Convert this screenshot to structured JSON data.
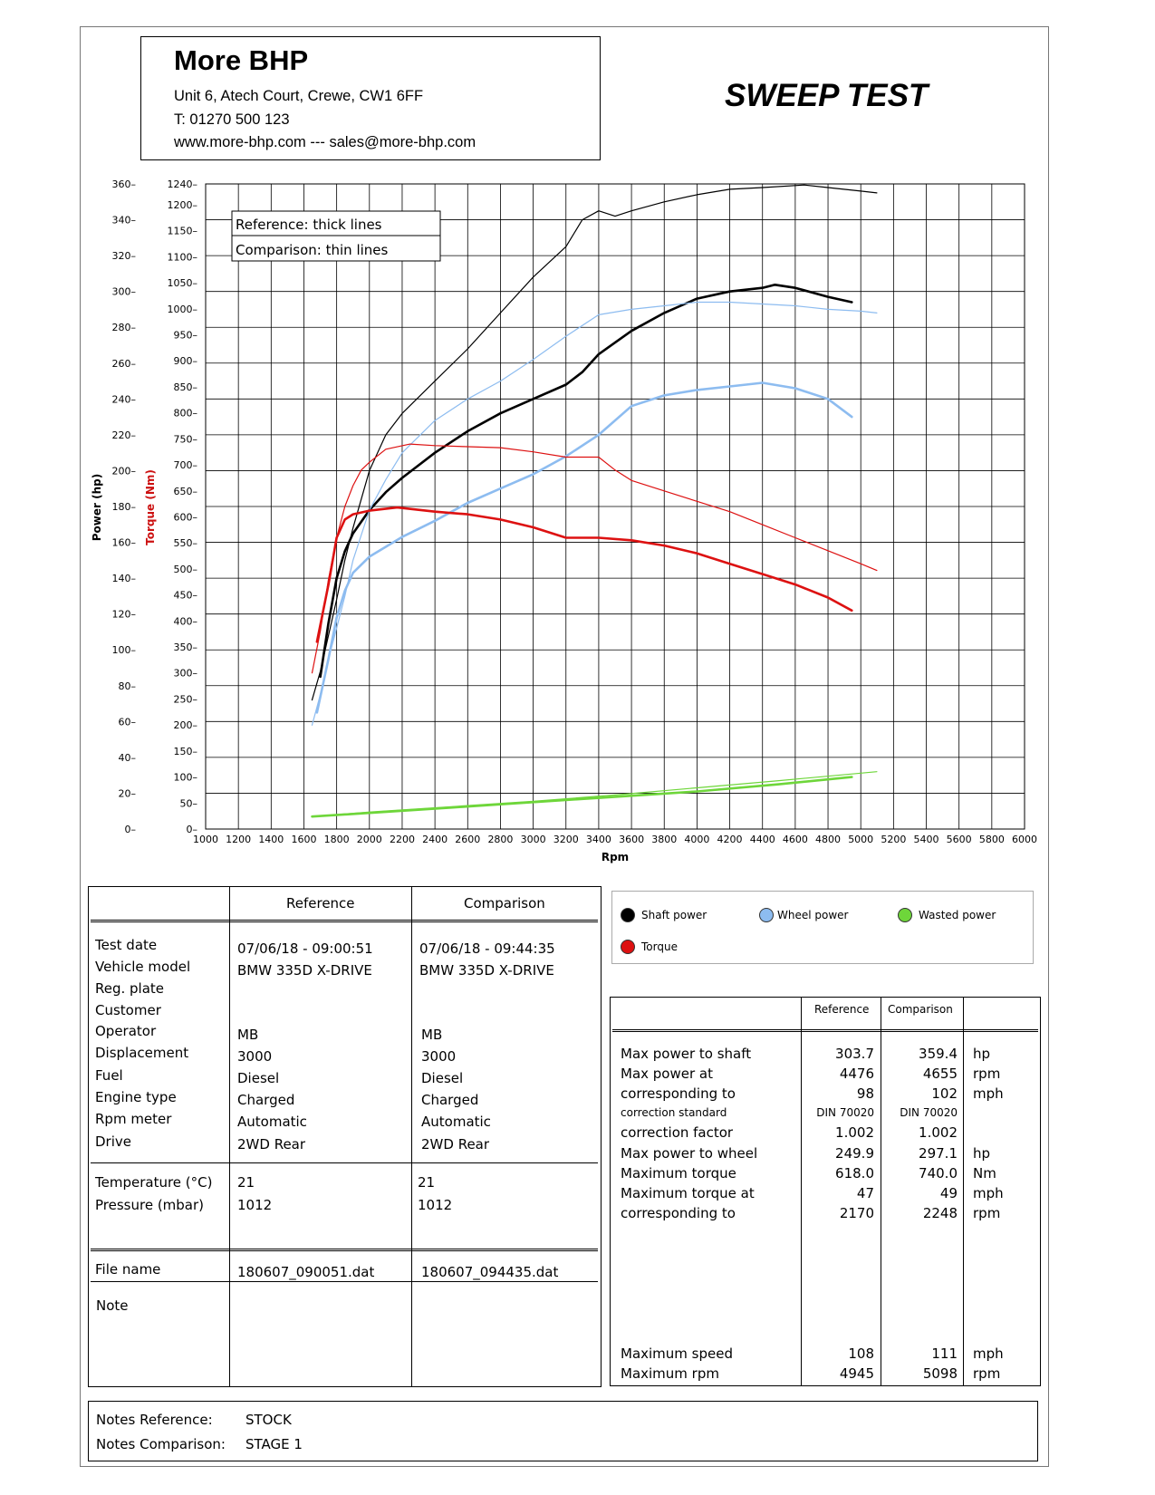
{
  "header": {
    "company": "More BHP",
    "address": "Unit 6, Atech Court, Crewe, CW1 6FF",
    "phone": "T: 01270 500 123",
    "web": "www.more-bhp.com --- sales@more-bhp.com",
    "test_title": "SWEEP TEST"
  },
  "chart_data": {
    "type": "line",
    "xlabel": "Rpm",
    "ylabel_left": "Power (hp)",
    "ylabel_right": "Torque (Nm)",
    "x_ticks": [
      1000,
      1200,
      1400,
      1600,
      1800,
      2000,
      2200,
      2400,
      2600,
      2800,
      3000,
      3200,
      3400,
      3600,
      3800,
      4000,
      4200,
      4400,
      4600,
      4800,
      5000,
      5200,
      5400,
      5600,
      5800,
      6000
    ],
    "power_ticks": [
      0,
      20,
      40,
      60,
      80,
      100,
      120,
      140,
      160,
      180,
      200,
      220,
      240,
      260,
      280,
      300,
      320,
      340,
      360
    ],
    "torque_ticks": [
      0,
      50,
      100,
      150,
      200,
      250,
      300,
      350,
      400,
      450,
      500,
      550,
      600,
      650,
      700,
      750,
      800,
      850,
      900,
      950,
      1000,
      1050,
      1100,
      1150,
      1200,
      1240
    ],
    "xlim": [
      1000,
      6000
    ],
    "power_lim": [
      0,
      360
    ],
    "torque_lim": [
      0,
      1240
    ],
    "grid": true,
    "annotation": [
      "Reference: thick lines",
      "Comparison: thin lines"
    ],
    "colors": {
      "shaft": "#000000",
      "wheel": "#8dbcf0",
      "wasted": "#6ed63a",
      "torque": "#dd1111"
    },
    "series": [
      {
        "name": "Shaft power",
        "variant": "Reference",
        "axis": "power",
        "color": "#000000",
        "thick": true,
        "x": [
          1700,
          1750,
          1800,
          1850,
          1900,
          2000,
          2100,
          2200,
          2400,
          2600,
          2800,
          3000,
          3200,
          3300,
          3400,
          3600,
          3800,
          4000,
          4200,
          4400,
          4476,
          4600,
          4800,
          4945
        ],
        "y": [
          85,
          115,
          140,
          155,
          165,
          178,
          188,
          196,
          210,
          222,
          232,
          240,
          248,
          255,
          265,
          278,
          288,
          296,
          300,
          302,
          303.7,
          302,
          297,
          294
        ]
      },
      {
        "name": "Shaft power",
        "variant": "Comparison",
        "axis": "power",
        "color": "#000000",
        "thick": false,
        "x": [
          1650,
          1700,
          1750,
          1800,
          1850,
          1900,
          2000,
          2100,
          2200,
          2400,
          2600,
          2800,
          3000,
          3200,
          3300,
          3400,
          3500,
          3600,
          3800,
          4000,
          4200,
          4400,
          4655,
          4800,
          5000,
          5098
        ],
        "y": [
          72,
          88,
          108,
          128,
          150,
          168,
          200,
          220,
          232,
          250,
          268,
          288,
          308,
          325,
          340,
          345,
          342,
          345,
          350,
          354,
          357,
          358,
          359.4,
          358,
          356,
          355
        ]
      },
      {
        "name": "Wheel power",
        "variant": "Reference",
        "axis": "power",
        "color": "#8dbcf0",
        "thick": true,
        "x": [
          1680,
          1750,
          1800,
          1850,
          1900,
          2000,
          2200,
          2400,
          2600,
          2800,
          3000,
          3200,
          3400,
          3600,
          3800,
          4000,
          4200,
          4400,
          4600,
          4800,
          4945
        ],
        "y": [
          65,
          95,
          118,
          133,
          143,
          152,
          163,
          172,
          182,
          190,
          198,
          208,
          220,
          236,
          242,
          245,
          247,
          249,
          246,
          240,
          230
        ]
      },
      {
        "name": "Wheel power",
        "variant": "Comparison",
        "axis": "power",
        "color": "#8dbcf0",
        "thick": false,
        "x": [
          1650,
          1700,
          1750,
          1800,
          1850,
          1900,
          2000,
          2100,
          2200,
          2400,
          2600,
          2800,
          3000,
          3200,
          3400,
          3600,
          3800,
          4000,
          4200,
          4400,
          4600,
          4800,
          5000,
          5098
        ],
        "y": [
          58,
          75,
          95,
          112,
          130,
          150,
          178,
          195,
          210,
          228,
          240,
          250,
          262,
          275,
          287,
          290,
          292,
          294,
          294,
          293,
          292,
          290,
          289,
          288
        ]
      },
      {
        "name": "Torque",
        "variant": "Reference",
        "axis": "torque",
        "color": "#dd1111",
        "thick": true,
        "x": [
          1680,
          1750,
          1800,
          1850,
          1900,
          2000,
          2170,
          2400,
          2600,
          2800,
          3000,
          3200,
          3400,
          3600,
          3800,
          4000,
          4200,
          4400,
          4600,
          4800,
          4945
        ],
        "y": [
          360,
          470,
          560,
          595,
          605,
          612,
          618,
          610,
          605,
          595,
          580,
          560,
          560,
          555,
          545,
          530,
          510,
          490,
          470,
          445,
          420
        ]
      },
      {
        "name": "Torque",
        "variant": "Comparison",
        "axis": "torque",
        "color": "#dd1111",
        "thick": false,
        "x": [
          1650,
          1700,
          1750,
          1800,
          1850,
          1900,
          1950,
          2000,
          2100,
          2248,
          2400,
          2600,
          2800,
          3000,
          3200,
          3400,
          3500,
          3600,
          3800,
          4000,
          4200,
          4400,
          4600,
          4800,
          5000,
          5098
        ],
        "y": [
          300,
          380,
          480,
          560,
          620,
          660,
          690,
          705,
          730,
          740,
          737,
          735,
          733,
          725,
          715,
          715,
          690,
          670,
          650,
          630,
          610,
          585,
          560,
          535,
          510,
          497
        ]
      },
      {
        "name": "Wasted power",
        "variant": "Reference",
        "axis": "power",
        "color": "#6ed63a",
        "thick": true,
        "x": [
          1650,
          2000,
          2500,
          3000,
          3500,
          4000,
          4500,
          4945
        ],
        "y": [
          7,
          9,
          12,
          15,
          18,
          21,
          25,
          29
        ]
      },
      {
        "name": "Wasted power",
        "variant": "Comparison",
        "axis": "power",
        "color": "#6ed63a",
        "thick": false,
        "x": [
          1650,
          2000,
          2500,
          3000,
          3500,
          4000,
          4500,
          5098
        ],
        "y": [
          7,
          9.5,
          12.5,
          15.5,
          19,
          23,
          27,
          32
        ]
      }
    ]
  },
  "legend": {
    "shaft": "Shaft power",
    "wheel": "Wheel power",
    "wasted": "Wasted power",
    "torque": "Torque"
  },
  "info_table": {
    "col_reference": "Reference",
    "col_comparison": "Comparison",
    "labels": {
      "test_date": "Test date",
      "vehicle_model": "Vehicle model",
      "reg_plate": "Reg. plate",
      "customer": "Customer",
      "operator": "Operator",
      "displacement": "Displacement",
      "fuel": "Fuel",
      "engine_type": "Engine type",
      "rpm_meter": "Rpm meter",
      "drive": "Drive",
      "temperature": "Temperature (°C)",
      "pressure": "Pressure (mbar)",
      "file_name": "File name",
      "note": "Note"
    },
    "reference": {
      "test_date": "07/06/18 - 09:00:51",
      "vehicle_model": "BMW 335D X-DRIVE",
      "operator": "MB",
      "displacement": "3000",
      "fuel": "Diesel",
      "engine_type": "Charged",
      "rpm_meter": "Automatic",
      "drive": "2WD Rear",
      "temperature": "21",
      "pressure": "1012",
      "file_name": "180607_090051.dat"
    },
    "comparison": {
      "test_date": "07/06/18 - 09:44:35",
      "vehicle_model": "BMW 335D X-DRIVE",
      "operator": "MB",
      "displacement": "3000",
      "fuel": "Diesel",
      "engine_type": "Charged",
      "rpm_meter": "Automatic",
      "drive": "2WD Rear",
      "temperature": "21",
      "pressure": "1012",
      "file_name": "180607_094435.dat"
    }
  },
  "results_table": {
    "col_reference": "Reference",
    "col_comparison": "Comparison",
    "rows": [
      {
        "label": "Max power to shaft",
        "ref": "303.7",
        "comp": "359.4",
        "unit": "hp"
      },
      {
        "label": "Max power at",
        "ref": "4476",
        "comp": "4655",
        "unit": "rpm"
      },
      {
        "label": "corresponding to",
        "ref": "98",
        "comp": "102",
        "unit": "mph"
      },
      {
        "label": "correction standard",
        "ref": "DIN 70020",
        "comp": "DIN 70020",
        "unit": ""
      },
      {
        "label": "correction factor",
        "ref": "1.002",
        "comp": "1.002",
        "unit": ""
      },
      {
        "label": "Max power to wheel",
        "ref": "249.9",
        "comp": "297.1",
        "unit": "hp"
      },
      {
        "label": "Maximum torque",
        "ref": "618.0",
        "comp": "740.0",
        "unit": "Nm"
      },
      {
        "label": "Maximum torque at",
        "ref": "47",
        "comp": "49",
        "unit": "mph"
      },
      {
        "label": "corresponding to",
        "ref": "2170",
        "comp": "2248",
        "unit": "rpm"
      }
    ],
    "bottom_rows": [
      {
        "label": "Maximum speed",
        "ref": "108",
        "comp": "111",
        "unit": "mph"
      },
      {
        "label": "Maximum rpm",
        "ref": "4945",
        "comp": "5098",
        "unit": "rpm"
      }
    ]
  },
  "notes": {
    "ref_label": "Notes Reference:",
    "ref_value": "STOCK",
    "comp_label": "Notes Comparison:",
    "comp_value": "STAGE 1"
  }
}
